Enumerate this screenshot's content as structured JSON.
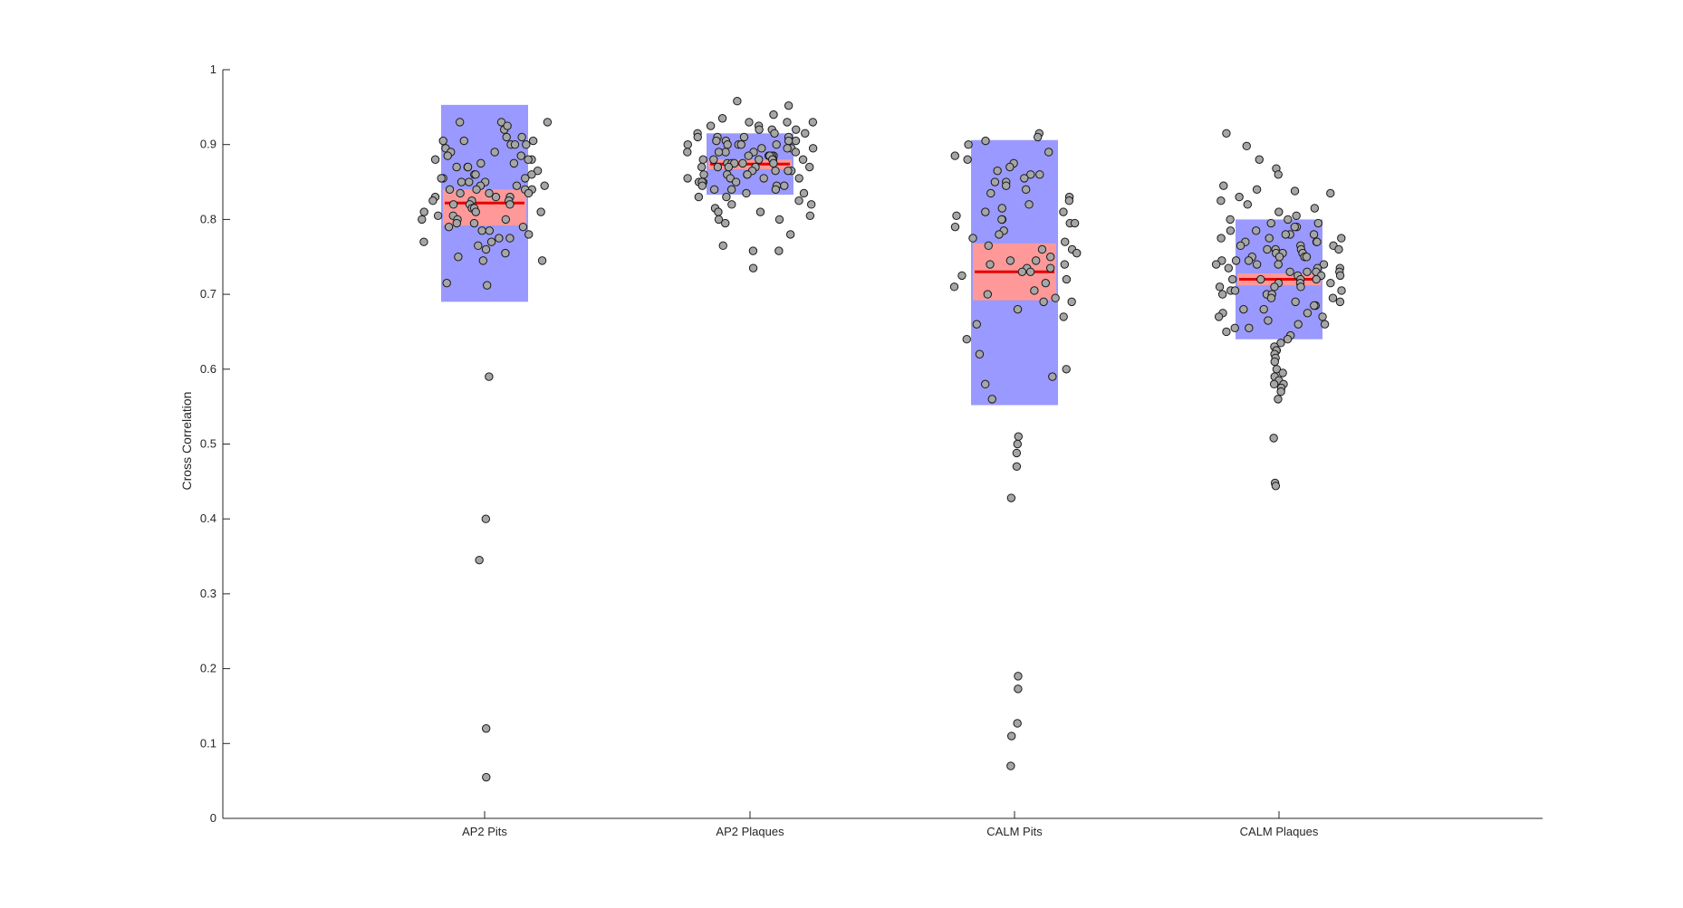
{
  "chart_data": {
    "type": "scatter",
    "subtype": "jittered strip plot with mean line, confidence band (red) and spread band (blue)",
    "title": "",
    "xlabel": "",
    "ylabel": "Cross Correlation",
    "ylim": [
      0,
      1
    ],
    "yticks": [
      0,
      0.1,
      0.2,
      0.3,
      0.4,
      0.5,
      0.6,
      0.7,
      0.8,
      0.9,
      1
    ],
    "grid": false,
    "legend": "none",
    "colors": {
      "spread_band": "#9999ff",
      "ci_band": "#ff9999",
      "mean_line": "#e60000",
      "marker_fill": "#a6a6a6",
      "marker_edge": "#1a1a1a",
      "axis": "#262626"
    },
    "categories": [
      "AP2 Pits",
      "AP2 Plaques",
      "CALM Pits",
      "CALM Plaques"
    ],
    "groups": [
      {
        "category": "AP2 Pits",
        "mean": 0.822,
        "ci": [
          0.792,
          0.84
        ],
        "spread": [
          0.69,
          0.953
        ],
        "values": [
          0.92,
          0.93,
          0.93,
          0.93,
          0.925,
          0.91,
          0.905,
          0.905,
          0.9,
          0.9,
          0.9,
          0.905,
          0.91,
          0.895,
          0.89,
          0.89,
          0.885,
          0.885,
          0.88,
          0.88,
          0.88,
          0.875,
          0.875,
          0.87,
          0.87,
          0.87,
          0.865,
          0.86,
          0.86,
          0.86,
          0.855,
          0.855,
          0.855,
          0.85,
          0.85,
          0.85,
          0.845,
          0.845,
          0.845,
          0.84,
          0.84,
          0.84,
          0.84,
          0.835,
          0.835,
          0.835,
          0.83,
          0.83,
          0.83,
          0.825,
          0.825,
          0.825,
          0.82,
          0.82,
          0.82,
          0.815,
          0.815,
          0.81,
          0.81,
          0.81,
          0.805,
          0.805,
          0.8,
          0.8,
          0.8,
          0.795,
          0.795,
          0.79,
          0.79,
          0.785,
          0.785,
          0.78,
          0.775,
          0.775,
          0.77,
          0.77,
          0.765,
          0.76,
          0.755,
          0.75,
          0.745,
          0.745,
          0.715,
          0.712,
          0.59,
          0.4,
          0.345,
          0.12,
          0.055
        ]
      },
      {
        "category": "AP2 Plaques",
        "mean": 0.874,
        "ci": [
          0.867,
          0.88
        ],
        "spread": [
          0.833,
          0.915
        ],
        "values": [
          0.958,
          0.952,
          0.94,
          0.935,
          0.93,
          0.93,
          0.93,
          0.925,
          0.925,
          0.92,
          0.92,
          0.92,
          0.915,
          0.915,
          0.915,
          0.91,
          0.91,
          0.91,
          0.91,
          0.905,
          0.905,
          0.905,
          0.905,
          0.9,
          0.9,
          0.9,
          0.9,
          0.9,
          0.895,
          0.895,
          0.895,
          0.895,
          0.89,
          0.89,
          0.89,
          0.89,
          0.89,
          0.885,
          0.885,
          0.885,
          0.885,
          0.885,
          0.88,
          0.88,
          0.88,
          0.88,
          0.88,
          0.88,
          0.875,
          0.875,
          0.875,
          0.875,
          0.875,
          0.87,
          0.87,
          0.87,
          0.87,
          0.87,
          0.865,
          0.865,
          0.865,
          0.865,
          0.86,
          0.86,
          0.86,
          0.86,
          0.855,
          0.855,
          0.855,
          0.855,
          0.85,
          0.85,
          0.85,
          0.85,
          0.845,
          0.845,
          0.845,
          0.84,
          0.84,
          0.84,
          0.835,
          0.835,
          0.83,
          0.83,
          0.825,
          0.82,
          0.82,
          0.815,
          0.81,
          0.81,
          0.805,
          0.8,
          0.8,
          0.795,
          0.78,
          0.765,
          0.758,
          0.758,
          0.735
        ]
      },
      {
        "category": "CALM Pits",
        "mean": 0.73,
        "ci": [
          0.692,
          0.768
        ],
        "spread": [
          0.552,
          0.906
        ],
        "values": [
          0.915,
          0.91,
          0.905,
          0.9,
          0.89,
          0.885,
          0.88,
          0.875,
          0.87,
          0.865,
          0.86,
          0.86,
          0.855,
          0.85,
          0.85,
          0.845,
          0.84,
          0.835,
          0.83,
          0.825,
          0.82,
          0.815,
          0.81,
          0.81,
          0.805,
          0.8,
          0.8,
          0.795,
          0.795,
          0.79,
          0.785,
          0.78,
          0.775,
          0.77,
          0.765,
          0.76,
          0.76,
          0.755,
          0.75,
          0.745,
          0.745,
          0.74,
          0.74,
          0.735,
          0.735,
          0.73,
          0.73,
          0.725,
          0.72,
          0.715,
          0.71,
          0.705,
          0.7,
          0.695,
          0.69,
          0.69,
          0.68,
          0.67,
          0.66,
          0.64,
          0.62,
          0.6,
          0.59,
          0.58,
          0.56,
          0.51,
          0.5,
          0.488,
          0.47,
          0.428,
          0.19,
          0.173,
          0.127,
          0.11,
          0.07
        ]
      },
      {
        "category": "CALM Plaques",
        "mean": 0.72,
        "ci": [
          0.712,
          0.728
        ],
        "spread": [
          0.64,
          0.8
        ],
        "values": [
          0.915,
          0.898,
          0.88,
          0.868,
          0.86,
          0.845,
          0.84,
          0.838,
          0.835,
          0.83,
          0.825,
          0.82,
          0.815,
          0.81,
          0.805,
          0.8,
          0.8,
          0.795,
          0.795,
          0.79,
          0.79,
          0.785,
          0.785,
          0.78,
          0.78,
          0.78,
          0.775,
          0.775,
          0.775,
          0.77,
          0.77,
          0.77,
          0.765,
          0.765,
          0.765,
          0.76,
          0.76,
          0.76,
          0.76,
          0.755,
          0.755,
          0.755,
          0.75,
          0.75,
          0.75,
          0.75,
          0.745,
          0.745,
          0.745,
          0.74,
          0.74,
          0.74,
          0.74,
          0.735,
          0.735,
          0.735,
          0.73,
          0.73,
          0.73,
          0.73,
          0.725,
          0.725,
          0.725,
          0.72,
          0.72,
          0.72,
          0.72,
          0.715,
          0.715,
          0.715,
          0.71,
          0.71,
          0.71,
          0.705,
          0.705,
          0.705,
          0.7,
          0.7,
          0.7,
          0.695,
          0.695,
          0.69,
          0.69,
          0.685,
          0.685,
          0.68,
          0.68,
          0.675,
          0.675,
          0.67,
          0.67,
          0.665,
          0.66,
          0.66,
          0.655,
          0.655,
          0.65,
          0.645,
          0.64,
          0.635,
          0.63,
          0.625,
          0.625,
          0.62,
          0.615,
          0.61,
          0.6,
          0.595,
          0.59,
          0.585,
          0.58,
          0.58,
          0.575,
          0.57,
          0.56,
          0.508,
          0.448,
          0.444
        ]
      }
    ]
  }
}
